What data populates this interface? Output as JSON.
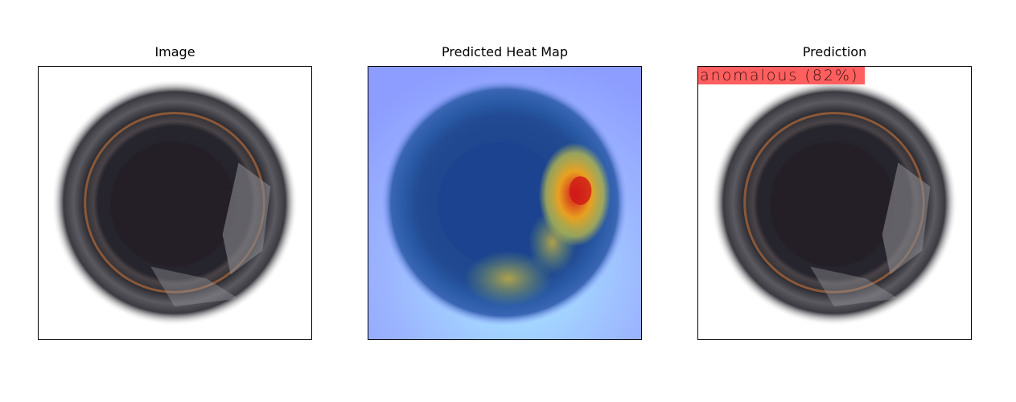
{
  "panels": {
    "image": {
      "title": "Image"
    },
    "heatmap": {
      "title": "Predicted Heat Map"
    },
    "prediction": {
      "title": "Prediction",
      "label": "anomalous (82%)"
    }
  },
  "colors": {
    "label_background": "#ff5f5f",
    "heatmap_base": "#8fa3ff",
    "heatmap_hot": "#d01818"
  }
}
